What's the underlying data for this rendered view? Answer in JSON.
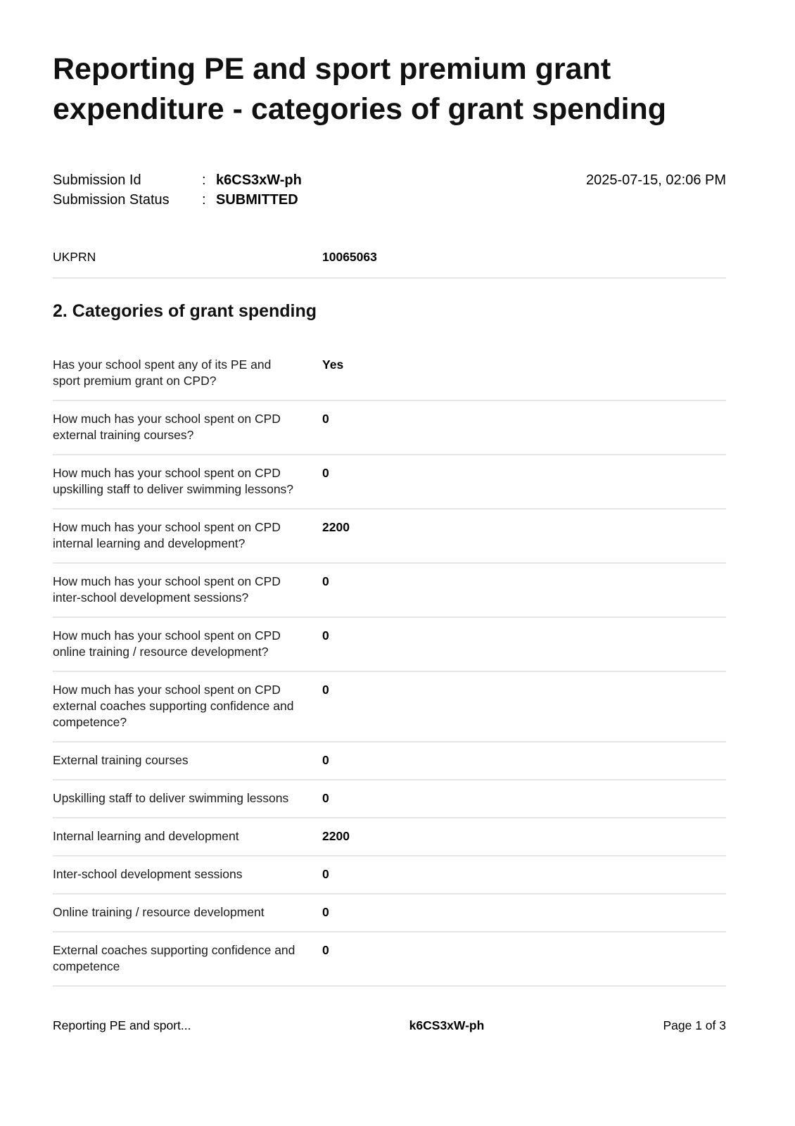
{
  "page": {
    "title": "Reporting PE and sport premium grant expenditure - categories of grant spending"
  },
  "submission": {
    "id_label": "Submission Id",
    "id_colon": ":",
    "id_value": "k6CS3xW-ph",
    "status_label": "Submission Status",
    "status_colon": ":",
    "status_value": "SUBMITTED",
    "datetime": "2025-07-15, 02:06 PM"
  },
  "ukprn": {
    "label": "UKPRN",
    "value": "10065063"
  },
  "section": {
    "heading": "2. Categories of grant spending"
  },
  "rows": [
    {
      "label": "Has your school spent any of its PE and sport premium grant on CPD?",
      "value": "Yes"
    },
    {
      "label": "How much has your school spent on CPD external training courses?",
      "value": "0"
    },
    {
      "label": "How much has your school spent on CPD upskilling staff to deliver swimming lessons?",
      "value": "0"
    },
    {
      "label": "How much has your school spent on CPD internal learning and development?",
      "value": "2200"
    },
    {
      "label": "How much has your school spent on CPD inter-school development sessions?",
      "value": "0"
    },
    {
      "label": "How much has your school spent on CPD online training / resource development?",
      "value": "0"
    },
    {
      "label": "How much has your school spent on CPD external coaches supporting confidence and competence?",
      "value": "0"
    },
    {
      "label": "External training courses",
      "value": "0"
    },
    {
      "label": "Upskilling staff to deliver swimming lessons",
      "value": "0"
    },
    {
      "label": "Internal learning and development",
      "value": "2200"
    },
    {
      "label": "Inter-school development sessions",
      "value": "0"
    },
    {
      "label": "Online training / resource development",
      "value": "0"
    },
    {
      "label": "External coaches supporting confidence and competence",
      "value": "0"
    }
  ],
  "footer": {
    "left": "Reporting PE and sport...",
    "center": "k6CS3xW-ph",
    "right": "Page 1 of 3"
  },
  "colors": {
    "background": "#ffffff",
    "text": "#000000",
    "divider": "#e6e6e6"
  }
}
